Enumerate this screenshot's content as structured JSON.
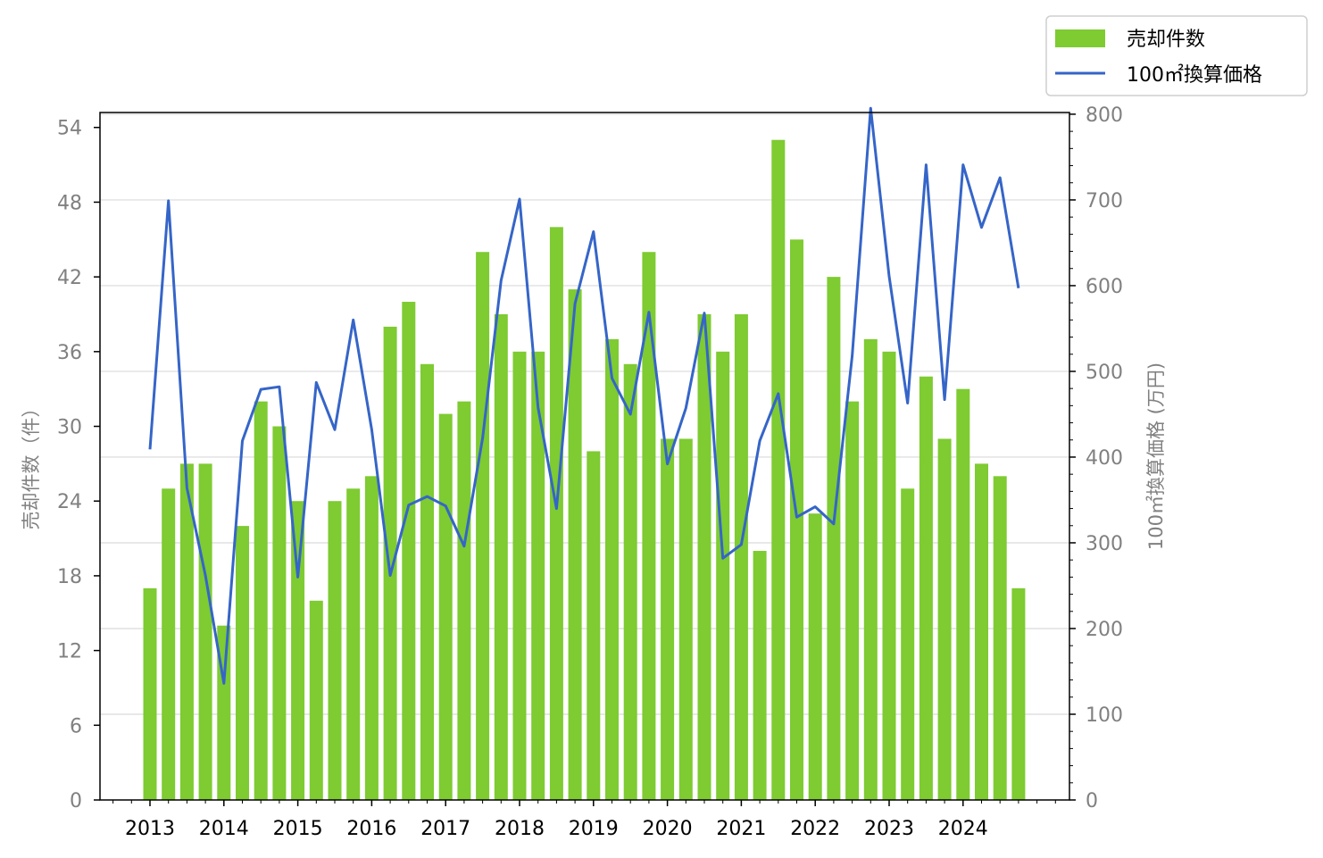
{
  "chart_data": {
    "type": "bar+line",
    "legend_placement": "top-right, outside plot",
    "grid": "horizontal lines on right-axis ticks",
    "colors": {
      "bars": "#7ecb32",
      "line": "#3565c8",
      "grid": "#d9d9d9"
    },
    "x_ticks": [
      "2013",
      "2014",
      "2015",
      "2016",
      "2017",
      "2018",
      "2019",
      "2020",
      "2021",
      "2022",
      "2023",
      "2024"
    ],
    "left_axis": {
      "label": "売却件数（件）",
      "ylim": [
        0,
        55.2
      ],
      "ticks": [
        "0",
        "6",
        "12",
        "18",
        "24",
        "30",
        "36",
        "42",
        "48",
        "54"
      ]
    },
    "right_axis": {
      "label": "100㎡換算価格 (万円)",
      "ylim": [
        0,
        802
      ],
      "ticks": [
        "0",
        "100",
        "200",
        "300",
        "400",
        "500",
        "600",
        "700",
        "800"
      ]
    },
    "quarters": [
      "2013Q1",
      "2013Q2",
      "2013Q3",
      "2013Q4",
      "2014Q1",
      "2014Q2",
      "2014Q3",
      "2014Q4",
      "2015Q1",
      "2015Q2",
      "2015Q3",
      "2015Q4",
      "2016Q1",
      "2016Q2",
      "2016Q3",
      "2016Q4",
      "2017Q1",
      "2017Q2",
      "2017Q3",
      "2017Q4",
      "2018Q1",
      "2018Q2",
      "2018Q3",
      "2018Q4",
      "2019Q1",
      "2019Q2",
      "2019Q3",
      "2019Q4",
      "2020Q1",
      "2020Q2",
      "2020Q3",
      "2020Q4",
      "2021Q1",
      "2021Q2",
      "2021Q3",
      "2021Q4",
      "2022Q1",
      "2022Q2",
      "2022Q3",
      "2022Q4",
      "2023Q1",
      "2023Q2",
      "2023Q3",
      "2023Q4",
      "2024Q1",
      "2024Q2",
      "2024Q3",
      "2024Q4"
    ],
    "series": [
      {
        "name": "売却件数",
        "type": "bar",
        "axis": "left",
        "values": [
          17,
          25,
          27,
          27,
          14,
          22,
          32,
          30,
          24,
          16,
          24,
          25,
          26,
          38,
          40,
          35,
          31,
          32,
          44,
          39,
          36,
          36,
          46,
          41,
          28,
          37,
          35,
          44,
          29,
          29,
          39,
          36,
          39,
          20,
          53,
          45,
          23,
          42,
          32,
          37,
          36,
          25,
          34,
          29,
          33,
          27,
          26,
          17
        ]
      },
      {
        "name": "100㎡換算価格",
        "type": "line",
        "axis": "right",
        "values": [
          409,
          699,
          364,
          262,
          136,
          419,
          479,
          482,
          260,
          487,
          432,
          560,
          432,
          262,
          344,
          354,
          343,
          296,
          422,
          606,
          701,
          458,
          340,
          579,
          663,
          492,
          450,
          569,
          392,
          457,
          568,
          282,
          298,
          419,
          474,
          330,
          342,
          322,
          518,
          807,
          611,
          463,
          741,
          467,
          741,
          668,
          726,
          597
        ]
      }
    ]
  }
}
